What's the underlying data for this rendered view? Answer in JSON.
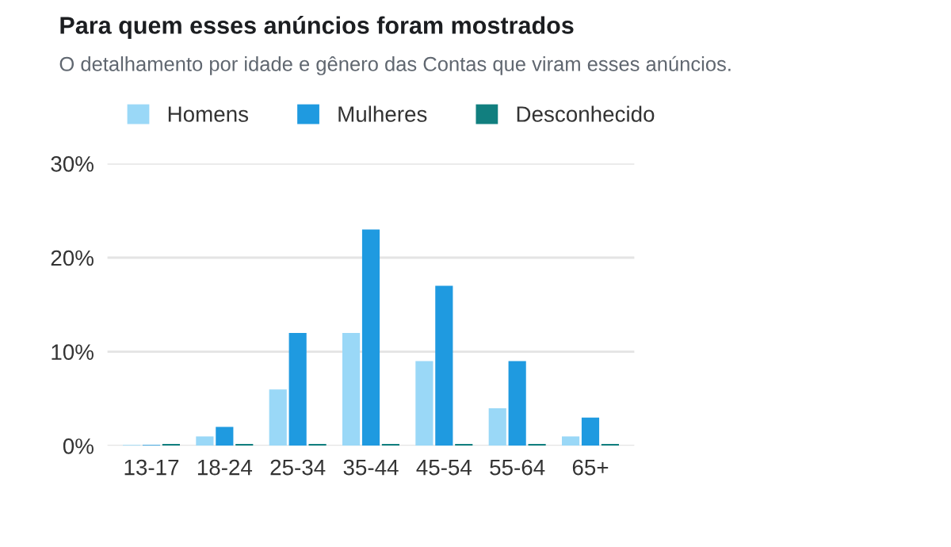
{
  "chart_data": {
    "type": "bar",
    "title": "Para quem esses anúncios foram mostrados",
    "subtitle": "O detalhamento por idade e gênero das Contas que viram esses anúncios.",
    "categories": [
      "13-17",
      "18-24",
      "25-34",
      "35-44",
      "45-54",
      "55-64",
      "65+"
    ],
    "series": [
      {
        "name": "Homens",
        "color": "#9ad8f7",
        "values": [
          0.1,
          1,
          6,
          12,
          9,
          4,
          1
        ]
      },
      {
        "name": "Mulheres",
        "color": "#1f9ae0",
        "values": [
          0.1,
          2,
          12,
          23,
          17,
          9,
          3
        ]
      },
      {
        "name": "Desconhecido",
        "color": "#117f7f",
        "values": [
          0.2,
          0.2,
          0.2,
          0.2,
          0.2,
          0.2,
          0.2
        ]
      }
    ],
    "ylim": [
      0,
      30
    ],
    "yticks": [
      {
        "value": 0,
        "label": "0%"
      },
      {
        "value": 10,
        "label": "10%"
      },
      {
        "value": 20,
        "label": "20%"
      },
      {
        "value": 30,
        "label": "30%"
      }
    ],
    "grid": "y",
    "legend": "top left"
  }
}
